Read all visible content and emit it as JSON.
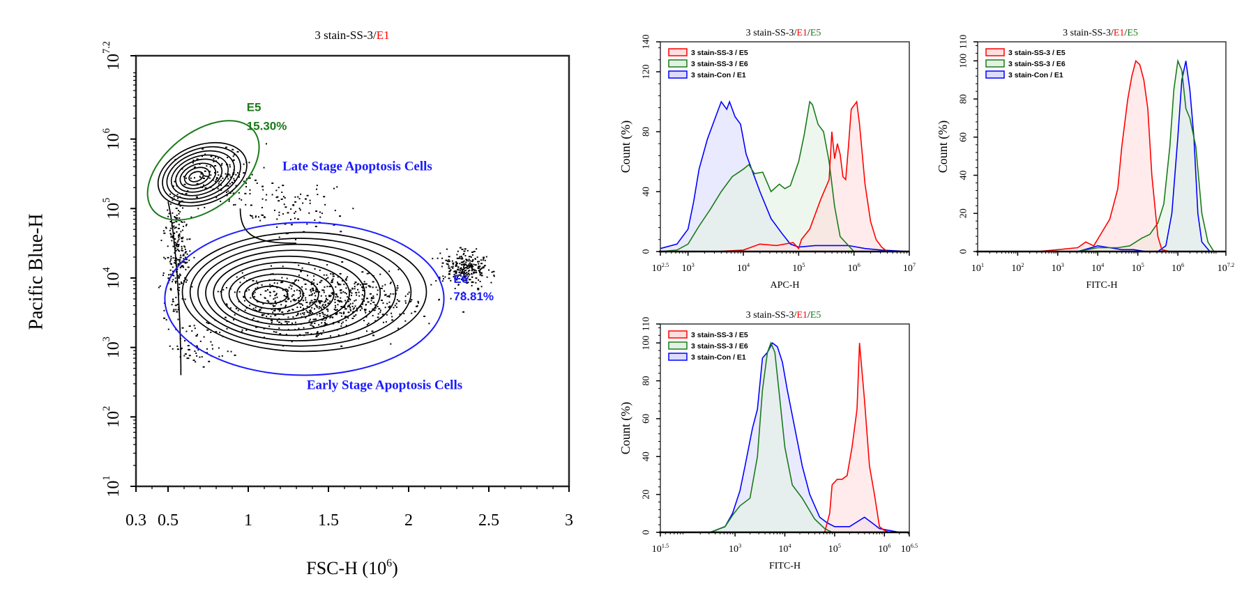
{
  "chart_data": [
    {
      "id": "scatter",
      "type": "scatter",
      "subtype": "contour-density",
      "title": {
        "prefix": "3 stain-SS-3/",
        "highlight": "E1",
        "highlight_color": "#ff0000"
      },
      "xlabel": "FSC-H (10",
      "xlabel_sup": "6",
      "xlabel_suffix": ")",
      "ylabel": "Pacific Blue-H",
      "xlim": [
        0.3,
        3
      ],
      "ylim_log10": [
        1,
        7.2
      ],
      "x_ticks": [
        {
          "v": 0.3,
          "label": "0.3"
        },
        {
          "v": 0.5,
          "label": "0.5"
        },
        {
          "v": 1,
          "label": "1"
        },
        {
          "v": 1.5,
          "label": "1.5"
        },
        {
          "v": 2,
          "label": "2"
        },
        {
          "v": 2.5,
          "label": "2.5"
        },
        {
          "v": 3,
          "label": "3"
        }
      ],
      "y_ticks": [
        {
          "v": 1,
          "base": "10",
          "exp": "1"
        },
        {
          "v": 2,
          "base": "10",
          "exp": "2"
        },
        {
          "v": 3,
          "base": "10",
          "exp": "3"
        },
        {
          "v": 4,
          "base": "10",
          "exp": "4"
        },
        {
          "v": 5,
          "base": "10",
          "exp": "5"
        },
        {
          "v": 6,
          "base": "10",
          "exp": "6"
        },
        {
          "v": 7.2,
          "base": "10",
          "exp": "7.2"
        }
      ],
      "gates": [
        {
          "name": "E5",
          "percent": "15.30%",
          "color": "#1a7a1a",
          "cx": 0.72,
          "cy_log": 5.55,
          "rx": 0.4,
          "ry_log": 0.55,
          "rotation": -38
        },
        {
          "name": "E6",
          "percent": "78.81%",
          "color": "#1a1aff",
          "cx": 1.35,
          "cy_log": 3.7,
          "rx": 0.87,
          "ry_log": 1.1,
          "rotation": 0
        }
      ],
      "populations": [
        {
          "cx": 0.66,
          "cy_log": 5.5,
          "label": "late-apoptosis-cluster"
        },
        {
          "cx": 1.1,
          "cy_log": 3.75,
          "label": "early-apoptosis-cluster"
        }
      ],
      "annotations": [
        {
          "text": "Late Stage Apoptosis Cells",
          "color": "#1a1aff",
          "x": 1.68,
          "y_log": 5.55
        },
        {
          "text": "Early Stage Apoptosis Cells",
          "color": "#1a1aff",
          "x": 1.85,
          "y_log": 2.4
        }
      ]
    },
    {
      "id": "hist-apc",
      "type": "area",
      "title": {
        "prefix": "3 stain-SS-3/",
        "highlight": "E1",
        "highlight_color": "#ff0000",
        "sep": "/",
        "highlight2": "E5",
        "highlight2_color": "#1a7a1a"
      },
      "xlabel": "APC-H",
      "ylabel": "Count (%)",
      "xlim_log10": [
        2.5,
        7
      ],
      "ylim": [
        0,
        140
      ],
      "x_ticks": [
        {
          "v": 2.5,
          "base": "10",
          "exp": "2.5"
        },
        {
          "v": 3,
          "base": "10",
          "exp": "3"
        },
        {
          "v": 4,
          "base": "10",
          "exp": "4"
        },
        {
          "v": 5,
          "base": "10",
          "exp": "5"
        },
        {
          "v": 6,
          "base": "10",
          "exp": "6"
        },
        {
          "v": 7,
          "base": "10",
          "exp": "7"
        }
      ],
      "y_ticks": [
        0,
        40,
        80,
        120,
        140
      ],
      "legend": [
        "3 stain-SS-3 / E5",
        "3 stain-SS-3 / E6",
        "3 stain-Con / E1"
      ],
      "legend_position": "top-left",
      "series": [
        {
          "name": "3 stain-SS-3 / E5",
          "color": "#ff0000",
          "fill": "#ffdede",
          "x_log": [
            2.5,
            3.5,
            4.0,
            4.3,
            4.6,
            4.9,
            5.0,
            5.05,
            5.2,
            5.4,
            5.55,
            5.6,
            5.65,
            5.7,
            5.75,
            5.8,
            5.85,
            5.9,
            5.95,
            6.05,
            6.1,
            6.2,
            6.3,
            6.4,
            6.5,
            6.6,
            7.0
          ],
          "y": [
            0,
            0,
            1,
            5,
            4,
            6,
            2,
            8,
            15,
            35,
            48,
            80,
            62,
            72,
            65,
            50,
            48,
            70,
            95,
            100,
            85,
            45,
            20,
            8,
            3,
            0,
            0
          ]
        },
        {
          "name": "3 stain-SS-3 / E6",
          "color": "#1a7a1a",
          "fill": "#e3f1e3",
          "x_log": [
            2.5,
            2.8,
            3.0,
            3.2,
            3.4,
            3.6,
            3.8,
            4.0,
            4.1,
            4.2,
            4.35,
            4.5,
            4.65,
            4.75,
            4.85,
            5.0,
            5.1,
            5.2,
            5.25,
            5.35,
            5.45,
            5.55,
            5.65,
            5.75,
            5.9,
            6.0,
            6.5
          ],
          "y": [
            0,
            1,
            5,
            17,
            28,
            40,
            50,
            55,
            58,
            52,
            53,
            40,
            45,
            42,
            44,
            60,
            78,
            100,
            98,
            85,
            80,
            60,
            30,
            10,
            4,
            0,
            0
          ]
        },
        {
          "name": "3 stain-Con / E1",
          "color": "#0000ff",
          "fill": "#dcdcff",
          "x_log": [
            2.5,
            2.8,
            3.0,
            3.1,
            3.2,
            3.35,
            3.5,
            3.6,
            3.7,
            3.75,
            3.85,
            3.95,
            4.05,
            4.15,
            4.3,
            4.5,
            4.7,
            4.85,
            5.0,
            5.3,
            5.6,
            5.9,
            6.2,
            6.5,
            7.0
          ],
          "y": [
            2,
            5,
            15,
            33,
            55,
            75,
            90,
            100,
            95,
            100,
            90,
            85,
            65,
            55,
            40,
            22,
            12,
            5,
            3,
            4,
            4,
            4,
            2,
            1,
            0
          ]
        }
      ]
    },
    {
      "id": "hist-fitc-1",
      "type": "area",
      "title": {
        "prefix": "3 stain-SS-3/",
        "highlight": "E1",
        "highlight_color": "#ff0000",
        "sep": "/",
        "highlight2": "E5",
        "highlight2_color": "#1a7a1a"
      },
      "xlabel": "FITC-H",
      "ylabel": "Count (%)",
      "xlim_log10": [
        1,
        7.2
      ],
      "ylim": [
        0,
        110
      ],
      "x_ticks": [
        {
          "v": 1,
          "base": "10",
          "exp": "1"
        },
        {
          "v": 2,
          "base": "10",
          "exp": "2"
        },
        {
          "v": 3,
          "base": "10",
          "exp": "3"
        },
        {
          "v": 4,
          "base": "10",
          "exp": "4"
        },
        {
          "v": 5,
          "base": "10",
          "exp": "5"
        },
        {
          "v": 6,
          "base": "10",
          "exp": "6"
        },
        {
          "v": 7.2,
          "base": "10",
          "exp": "7.2"
        }
      ],
      "y_ticks": [
        0,
        20,
        40,
        60,
        80,
        100,
        110
      ],
      "legend": [
        "3 stain-SS-3 / E5",
        "3 stain-SS-3 / E6",
        "3 stain-Con / E1"
      ],
      "legend_position": "top-left",
      "series": [
        {
          "name": "3 stain-SS-3 / E5",
          "color": "#ff0000",
          "fill": "#ffdede",
          "x_log": [
            1,
            2.5,
            3.0,
            3.5,
            3.7,
            3.9,
            4.1,
            4.3,
            4.5,
            4.6,
            4.75,
            4.85,
            4.95,
            5.05,
            5.15,
            5.25,
            5.35,
            5.5,
            5.6,
            5.8,
            7.2
          ],
          "y": [
            0,
            0,
            1,
            2,
            5,
            3,
            10,
            17,
            33,
            55,
            80,
            92,
            100,
            98,
            90,
            75,
            40,
            8,
            1,
            0,
            0
          ]
        },
        {
          "name": "3 stain-SS-3 / E6",
          "color": "#1a7a1a",
          "fill": "#e3f1e3",
          "x_log": [
            1,
            3.5,
            4.0,
            4.5,
            4.8,
            5.1,
            5.3,
            5.5,
            5.65,
            5.8,
            5.9,
            6.0,
            6.1,
            6.2,
            6.3,
            6.45,
            6.6,
            6.75,
            6.9,
            7.2
          ],
          "y": [
            0,
            0,
            2,
            2,
            3,
            7,
            9,
            15,
            25,
            55,
            85,
            100,
            95,
            75,
            70,
            55,
            20,
            5,
            0,
            0
          ]
        },
        {
          "name": "3 stain-Con / E1",
          "color": "#0000ff",
          "fill": "#dcdcff",
          "x_log": [
            1,
            3.5,
            4.0,
            4.3,
            4.6,
            4.9,
            5.2,
            5.5,
            5.7,
            5.85,
            6.0,
            6.1,
            6.2,
            6.3,
            6.4,
            6.5,
            6.6,
            6.8,
            7.2
          ],
          "y": [
            0,
            0,
            3,
            2,
            1,
            1,
            0,
            0,
            3,
            20,
            60,
            90,
            100,
            85,
            60,
            20,
            5,
            0,
            0
          ]
        }
      ]
    },
    {
      "id": "hist-fitc-2",
      "type": "area",
      "title": {
        "prefix": "3 stain-SS-3/",
        "highlight": "E1",
        "highlight_color": "#ff0000",
        "sep": "/",
        "highlight2": "E5",
        "highlight2_color": "#1a7a1a"
      },
      "xlabel": "FITC-H",
      "ylabel": "Count (%)",
      "xlim_log10": [
        1.5,
        6.5
      ],
      "ylim": [
        0,
        110
      ],
      "x_ticks": [
        {
          "v": 1.5,
          "base": "10",
          "exp": "1.5"
        },
        {
          "v": 3,
          "base": "10",
          "exp": "3"
        },
        {
          "v": 4,
          "base": "10",
          "exp": "4"
        },
        {
          "v": 5,
          "base": "10",
          "exp": "5"
        },
        {
          "v": 6,
          "base": "10",
          "exp": "6"
        },
        {
          "v": 6.5,
          "base": "10",
          "exp": "6.5"
        }
      ],
      "y_ticks": [
        0,
        20,
        40,
        60,
        80,
        100,
        110
      ],
      "legend": [
        "3 stain-SS-3 / E5",
        "3 stain-SS-3 / E6",
        "3 stain-Con / E1"
      ],
      "legend_position": "top-left",
      "series": [
        {
          "name": "3 stain-SS-3 / E5",
          "color": "#ff0000",
          "fill": "#ffdede",
          "x_log": [
            1.5,
            4.8,
            4.9,
            4.95,
            5.05,
            5.15,
            5.25,
            5.35,
            5.45,
            5.5,
            5.6,
            5.7,
            5.8,
            5.9,
            6.0,
            6.1,
            6.5
          ],
          "y": [
            0,
            0,
            10,
            25,
            28,
            28,
            30,
            45,
            65,
            100,
            70,
            35,
            20,
            3,
            1,
            0,
            0
          ]
        },
        {
          "name": "3 stain-SS-3 / E6",
          "color": "#1a7a1a",
          "fill": "#e3f1e3",
          "x_log": [
            1.5,
            2.5,
            2.8,
            2.95,
            3.1,
            3.3,
            3.45,
            3.55,
            3.65,
            3.72,
            3.8,
            3.9,
            4.0,
            4.15,
            4.35,
            4.6,
            4.8,
            4.95,
            6.5
          ],
          "y": [
            0,
            0,
            3,
            9,
            14,
            18,
            40,
            75,
            95,
            100,
            95,
            70,
            45,
            25,
            18,
            7,
            2,
            0,
            0
          ]
        },
        {
          "name": "3 stain-Con / E1",
          "color": "#0000ff",
          "fill": "#dcdcff",
          "x_log": [
            1.5,
            2.5,
            2.8,
            2.95,
            3.1,
            3.2,
            3.35,
            3.45,
            3.55,
            3.65,
            3.75,
            3.85,
            3.95,
            4.05,
            4.2,
            4.35,
            4.5,
            4.7,
            4.85,
            5.0,
            5.3,
            5.6,
            5.75,
            5.9,
            6.1,
            6.3,
            6.5
          ],
          "y": [
            0,
            0,
            3,
            10,
            22,
            35,
            55,
            65,
            92,
            95,
            100,
            98,
            90,
            75,
            55,
            35,
            20,
            8,
            5,
            3,
            3,
            8,
            5,
            2,
            1,
            0,
            0
          ]
        }
      ]
    }
  ]
}
